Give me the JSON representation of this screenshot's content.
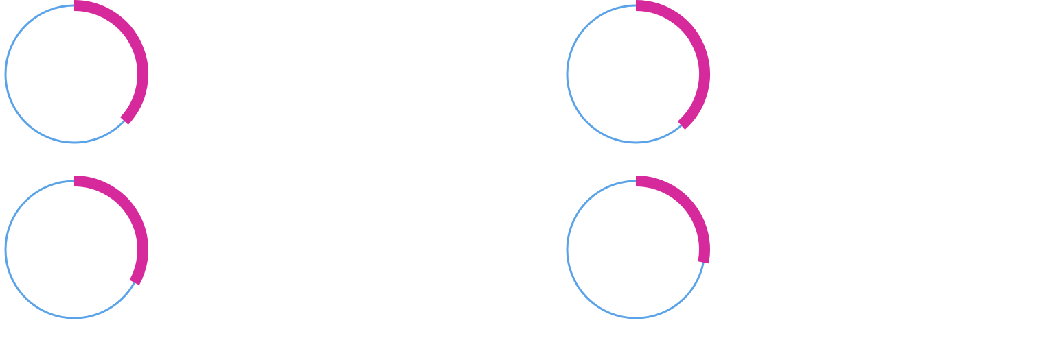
{
  "colors": {
    "track": "#5ba3e8",
    "progress": "#d62a9c",
    "background": "#ffffff"
  },
  "gauges": [
    {
      "value": 0.37
    },
    {
      "value": 0.385
    },
    {
      "value": 0.33
    },
    {
      "value": 0.28
    }
  ]
}
